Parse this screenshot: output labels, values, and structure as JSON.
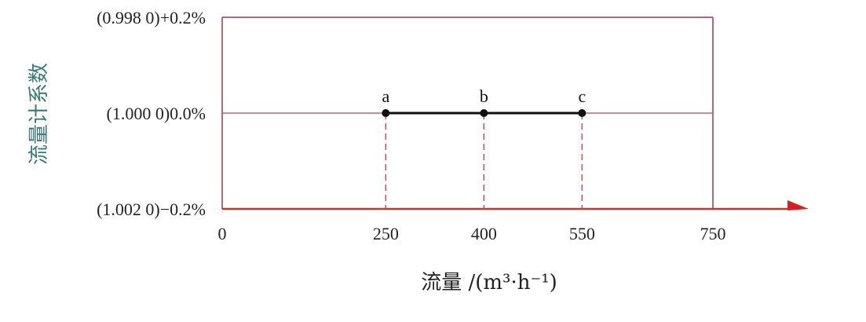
{
  "chart_data": {
    "type": "line",
    "xlabel": "流量 /(m³·h⁻¹)",
    "ylabel": "流量计系数",
    "x_ticks": [
      {
        "value": 0,
        "label": "0"
      },
      {
        "value": 250,
        "label": "250"
      },
      {
        "value": 400,
        "label": "400"
      },
      {
        "value": 550,
        "label": "550"
      },
      {
        "value": 750,
        "label": "750"
      }
    ],
    "y_ticks": [
      {
        "value": 0.2,
        "label": "(0.998 0)+0.2%"
      },
      {
        "value": 0.0,
        "label": "(1.000 0)0.0%"
      },
      {
        "value": -0.2,
        "label": "(1.002 0)−0.2%"
      }
    ],
    "xlim": [
      0,
      750
    ],
    "ylim": [
      -0.2,
      0.2
    ],
    "series": [
      {
        "points": [
          {
            "x": 250,
            "y": 0.0,
            "label": "a"
          },
          {
            "x": 400,
            "y": 0.0,
            "label": "b"
          },
          {
            "x": 550,
            "y": 0.0,
            "label": "c"
          }
        ]
      }
    ],
    "colors": {
      "frame": "#b06a7a",
      "axis": "#c0392b",
      "arrow": "#d62020",
      "dashed": "#c0506a",
      "line": "#111111",
      "ytitle": "#3a7a78"
    }
  }
}
